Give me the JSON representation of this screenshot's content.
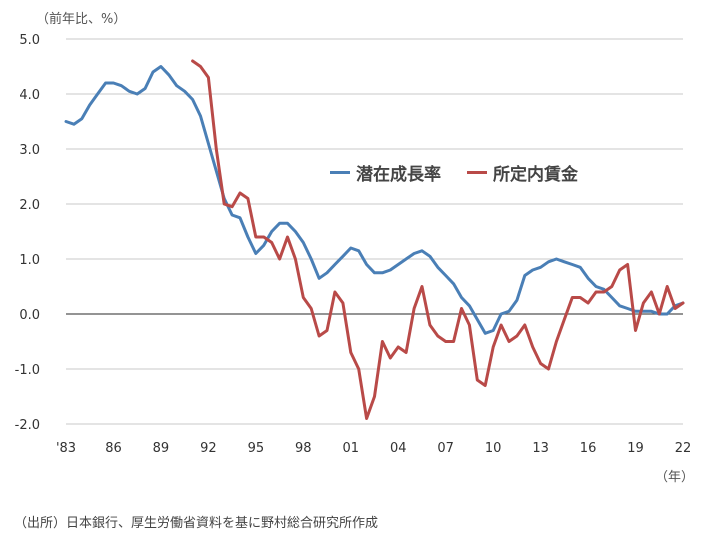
{
  "unit_label": "（前年比、%）",
  "year_label": "（年）",
  "source_note": "（出所）日本銀行、厚生労働省資料を基に野村総合研究所作成",
  "colors": {
    "potential": "#4a7fb6",
    "wage": "#b94a48",
    "grid": "#c8c8c8",
    "axis": "#555555"
  },
  "chart_data": {
    "type": "line",
    "title": "",
    "xlabel": "（年）",
    "ylabel": "（前年比、%）",
    "ylim": [
      -2.0,
      5.0
    ],
    "xlim": [
      1983,
      2022
    ],
    "yticks": [
      "5.0",
      "4.0",
      "3.0",
      "2.0",
      "1.0",
      "0.0",
      "-1.0",
      "-2.0"
    ],
    "xticks": [
      {
        "x": 1983,
        "label": "'83"
      },
      {
        "x": 1986,
        "label": "86"
      },
      {
        "x": 1989,
        "label": "89"
      },
      {
        "x": 1992,
        "label": "92"
      },
      {
        "x": 1995,
        "label": "95"
      },
      {
        "x": 1998,
        "label": "98"
      },
      {
        "x": 2001,
        "label": "01"
      },
      {
        "x": 2004,
        "label": "04"
      },
      {
        "x": 2007,
        "label": "07"
      },
      {
        "x": 2010,
        "label": "10"
      },
      {
        "x": 2013,
        "label": "13"
      },
      {
        "x": 2016,
        "label": "16"
      },
      {
        "x": 2019,
        "label": "19"
      },
      {
        "x": 2022,
        "label": "22"
      }
    ],
    "grid": true,
    "legend": "center-right",
    "series": [
      {
        "name": "潜在成長率",
        "color": "#4a7fb6",
        "x": [
          1983.0,
          1983.5,
          1984.0,
          1984.5,
          1985.0,
          1985.5,
          1986.0,
          1986.5,
          1987.0,
          1987.5,
          1988.0,
          1988.5,
          1989.0,
          1989.5,
          1990.0,
          1990.5,
          1991.0,
          1991.5,
          1992.0,
          1992.5,
          1993.0,
          1993.5,
          1994.0,
          1994.5,
          1995.0,
          1995.5,
          1996.0,
          1996.5,
          1997.0,
          1997.5,
          1998.0,
          1998.5,
          1999.0,
          1999.5,
          2000.0,
          2000.5,
          2001.0,
          2001.5,
          2002.0,
          2002.5,
          2003.0,
          2003.5,
          2004.0,
          2004.5,
          2005.0,
          2005.5,
          2006.0,
          2006.5,
          2007.0,
          2007.5,
          2008.0,
          2008.5,
          2009.0,
          2009.5,
          2010.0,
          2010.5,
          2011.0,
          2011.5,
          2012.0,
          2012.5,
          2013.0,
          2013.5,
          2014.0,
          2014.5,
          2015.0,
          2015.5,
          2016.0,
          2016.5,
          2017.0,
          2017.5,
          2018.0,
          2018.5,
          2019.0,
          2019.5,
          2020.0,
          2020.5,
          2021.0,
          2021.5,
          2022.0
        ],
        "values": [
          3.5,
          3.45,
          3.55,
          3.8,
          4.0,
          4.2,
          4.2,
          4.15,
          4.05,
          4.0,
          4.1,
          4.4,
          4.5,
          4.35,
          4.15,
          4.05,
          3.9,
          3.6,
          3.1,
          2.6,
          2.1,
          1.8,
          1.75,
          1.4,
          1.1,
          1.25,
          1.5,
          1.65,
          1.65,
          1.5,
          1.3,
          1.0,
          0.65,
          0.75,
          0.9,
          1.05,
          1.2,
          1.15,
          0.9,
          0.75,
          0.75,
          0.8,
          0.9,
          1.0,
          1.1,
          1.15,
          1.05,
          0.85,
          0.7,
          0.55,
          0.3,
          0.15,
          -0.1,
          -0.35,
          -0.3,
          0.0,
          0.05,
          0.25,
          0.7,
          0.8,
          0.85,
          0.95,
          1.0,
          0.95,
          0.9,
          0.85,
          0.65,
          0.5,
          0.45,
          0.3,
          0.15,
          0.1,
          0.05,
          0.05,
          0.05,
          0.0,
          0.0,
          0.15,
          0.2
        ]
      },
      {
        "name": "所定内賃金",
        "color": "#b94a48",
        "x": [
          1991.0,
          1991.5,
          1992.0,
          1992.5,
          1993.0,
          1993.5,
          1994.0,
          1994.5,
          1995.0,
          1995.5,
          1996.0,
          1996.5,
          1997.0,
          1997.5,
          1998.0,
          1998.5,
          1999.0,
          1999.5,
          2000.0,
          2000.5,
          2001.0,
          2001.5,
          2002.0,
          2002.5,
          2003.0,
          2003.5,
          2004.0,
          2004.5,
          2005.0,
          2005.5,
          2006.0,
          2006.5,
          2007.0,
          2007.5,
          2008.0,
          2008.5,
          2009.0,
          2009.5,
          2010.0,
          2010.5,
          2011.0,
          2011.5,
          2012.0,
          2012.5,
          2013.0,
          2013.5,
          2014.0,
          2014.5,
          2015.0,
          2015.5,
          2016.0,
          2016.5,
          2017.0,
          2017.5,
          2018.0,
          2018.5,
          2019.0,
          2019.5,
          2020.0,
          2020.5,
          2021.0,
          2021.5,
          2022.0
        ],
        "values": [
          4.6,
          4.5,
          4.3,
          3.0,
          2.0,
          1.95,
          2.2,
          2.1,
          1.4,
          1.4,
          1.3,
          1.0,
          1.4,
          1.0,
          0.3,
          0.1,
          -0.4,
          -0.3,
          0.4,
          0.2,
          -0.7,
          -1.0,
          -1.9,
          -1.5,
          -0.5,
          -0.8,
          -0.6,
          -0.7,
          0.1,
          0.5,
          -0.2,
          -0.4,
          -0.5,
          -0.5,
          0.1,
          -0.2,
          -1.2,
          -1.3,
          -0.6,
          -0.2,
          -0.5,
          -0.4,
          -0.2,
          -0.6,
          -0.9,
          -1.0,
          -0.5,
          -0.1,
          0.3,
          0.3,
          0.2,
          0.4,
          0.4,
          0.5,
          0.8,
          0.9,
          -0.3,
          0.2,
          0.4,
          0.0,
          0.5,
          0.1,
          0.2
        ]
      }
    ]
  }
}
